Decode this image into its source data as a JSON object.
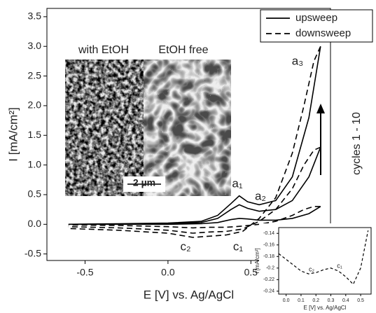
{
  "chart_data": [
    {
      "type": "line",
      "xlabel": "E [V] vs. Ag/AgCl",
      "ylabel": "I [mA/cm²]",
      "xlim": [
        -0.73,
        0.98
      ],
      "ylim": [
        -0.61,
        3.64
      ],
      "xticks": [
        -0.5,
        {
          "value": 0,
          "label": "0.0"
        },
        0.5
      ],
      "yticks": [
        -0.5,
        {
          "value": 0,
          "label": "0.0"
        },
        0.5,
        {
          "value": 1,
          "label": "1.0"
        },
        1.5,
        {
          "value": 2,
          "label": "2.0"
        },
        2.5,
        {
          "value": 3,
          "label": "3.0"
        },
        3.5
      ],
      "legend": "upper right",
      "series": [
        {
          "name": "upsweep",
          "color": "#000000",
          "dashed": false,
          "x": [
            -0.6,
            -0.3,
            0,
            0.2,
            0.3,
            0.38,
            0.43,
            0.48,
            0.55,
            0.65,
            0.75,
            0.85,
            0.92,
            null,
            -0.6,
            -0.3,
            0,
            0.2,
            0.3,
            0.38,
            0.43,
            0.48,
            0.55,
            0.65,
            0.75,
            0.85,
            0.92,
            null,
            -0.6,
            -0.3,
            0,
            0.2,
            0.3,
            0.38,
            0.43,
            0.48,
            0.55,
            0.65,
            0.75,
            0.85,
            0.92
          ],
          "values": [
            0.0,
            0.01,
            0.02,
            0.05,
            0.15,
            0.35,
            0.48,
            0.38,
            0.33,
            0.4,
            0.8,
            1.8,
            3.0,
            null,
            0.0,
            0.0,
            0.01,
            0.03,
            0.1,
            0.25,
            0.33,
            0.27,
            0.22,
            0.25,
            0.4,
            0.8,
            1.3,
            null,
            0,
            0,
            0,
            0.01,
            0.03,
            0.08,
            0.1,
            0.09,
            0.07,
            0.07,
            0.1,
            0.18,
            0.3
          ]
        },
        {
          "name": "downsweep",
          "color": "#000000",
          "dashed": true,
          "x": [
            0.92,
            0.88,
            0.82,
            0.75,
            0.65,
            0.55,
            0.45,
            0.35,
            0.25,
            0.15,
            0.0,
            -0.3,
            -0.6,
            null,
            0.92,
            0.88,
            0.82,
            0.75,
            0.65,
            0.55,
            0.45,
            0.35,
            0.25,
            0.15,
            0.0,
            -0.3,
            -0.6,
            null,
            0.92,
            0.88,
            0.82,
            0.75,
            0.65,
            0.55,
            0.45,
            0.35,
            0.25,
            0.15,
            0.0,
            -0.3,
            -0.6
          ],
          "values": [
            3.0,
            2.75,
            2.0,
            1.2,
            0.45,
            0.1,
            -0.12,
            -0.18,
            -0.2,
            -0.22,
            -0.15,
            -0.1,
            -0.07,
            null,
            1.3,
            1.25,
            1.0,
            0.6,
            0.25,
            0.05,
            -0.08,
            -0.12,
            -0.13,
            -0.15,
            -0.1,
            -0.06,
            -0.04,
            null,
            0.3,
            0.3,
            0.25,
            0.15,
            0.05,
            0.0,
            -0.03,
            -0.05,
            -0.05,
            -0.06,
            -0.04,
            -0.02,
            -0.01
          ]
        }
      ],
      "annotations": [
        "a₁",
        "a₂",
        "a₃",
        "c₁",
        "c₂",
        "cycles 1 - 10"
      ],
      "image_labels": [
        "with EtOH",
        "EtOH free",
        "2 µm"
      ]
    },
    {
      "type": "line",
      "xlabel": "E [V] vs. Ag/AgCl",
      "ylabel": "I [mA/cm²]",
      "xlim": [
        -0.05,
        0.57
      ],
      "ylim": [
        -0.245,
        -0.13
      ],
      "xticks": [
        {
          "value": 0,
          "label": "0.0"
        },
        0.1,
        0.2,
        0.3,
        0.4,
        0.5
      ],
      "yticks": [
        -0.24,
        -0.22,
        -0.2,
        -0.18,
        -0.16,
        -0.14
      ],
      "series": [
        {
          "color": "#000000",
          "dashed": true,
          "x": [
            -0.05,
            0,
            0.05,
            0.1,
            0.15,
            0.2,
            0.25,
            0.3,
            0.35,
            0.4,
            0.45,
            0.5,
            0.55
          ],
          "values": [
            -0.175,
            -0.185,
            -0.195,
            -0.205,
            -0.21,
            -0.208,
            -0.203,
            -0.2,
            -0.205,
            -0.215,
            -0.228,
            -0.2,
            -0.135
          ]
        }
      ],
      "annotations": [
        "c₂",
        "c₁"
      ]
    }
  ]
}
